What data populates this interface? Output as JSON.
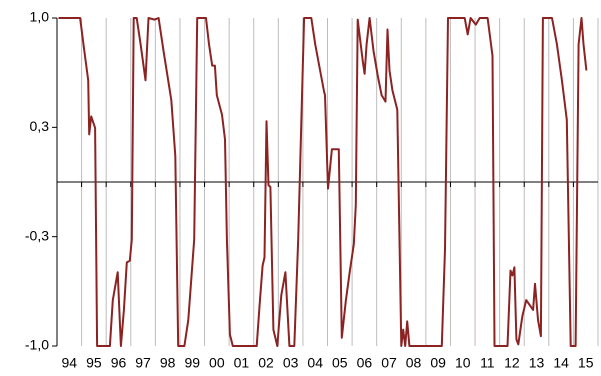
{
  "chart_data": {
    "type": "line",
    "x": [
      1994.06,
      1994.94,
      1995.11,
      1995.27,
      1995.31,
      1995.39,
      1995.55,
      1995.63,
      1996.15,
      1996.27,
      1996.47,
      1996.6,
      1996.72,
      1996.84,
      1996.96,
      1997.04,
      1997.12,
      1997.24,
      1997.4,
      1997.6,
      1997.72,
      1997.97,
      1998.13,
      1998.33,
      1998.65,
      1998.81,
      1998.93,
      1999.18,
      1999.34,
      1999.58,
      1999.7,
      1999.86,
      2000.06,
      2000.18,
      2000.31,
      2000.42,
      2000.5,
      2000.71,
      2000.83,
      2000.91,
      2001.03,
      2001.15,
      2002.12,
      2002.24,
      2002.36,
      2002.44,
      2002.52,
      2002.6,
      2002.68,
      2002.8,
      2002.96,
      2003.12,
      2003.29,
      2003.45,
      2003.65,
      2003.81,
      2004.05,
      2004.34,
      2004.5,
      2004.7,
      2004.86,
      2004.9,
      2005.02,
      2005.18,
      2005.34,
      2005.46,
      2005.58,
      2005.75,
      2005.91,
      2006.07,
      2006.15,
      2006.23,
      2006.43,
      2006.51,
      2006.59,
      2006.71,
      2006.87,
      2007.04,
      2007.2,
      2007.36,
      2007.44,
      2007.52,
      2007.64,
      2007.84,
      2008,
      2008.08,
      2008.16,
      2008.24,
      2008.33,
      2009.65,
      2009.78,
      2009.9,
      2010.58,
      2010.7,
      2010.82,
      2011.03,
      2011.19,
      2011.51,
      2011.71,
      2011.79,
      2012.32,
      2012.44,
      2012.52,
      2012.6,
      2012.68,
      2012.76,
      2012.92,
      2013.08,
      2013.36,
      2013.44,
      2013.56,
      2013.68,
      2013.76,
      2014.13,
      2014.33,
      2014.53,
      2014.73,
      2014.89,
      2015.09,
      2015.21,
      2015.33,
      2015.41,
      2015.53
    ],
    "series": [
      {
        "color": "#8b2323",
        "values": [
          1,
          1,
          0.8,
          0.62,
          0.29,
          0.4,
          0.33,
          -1,
          -1,
          -0.72,
          -0.55,
          -1,
          -0.78,
          -0.49,
          -0.48,
          -0.35,
          1,
          1,
          0.84,
          0.62,
          1,
          0.99,
          1,
          0.8,
          0.5,
          0.16,
          -1,
          -1,
          -0.84,
          -0.35,
          1,
          1,
          1,
          0.84,
          0.71,
          0.71,
          0.53,
          0.41,
          0.26,
          -0.35,
          -0.93,
          -1,
          -1,
          -0.75,
          -0.51,
          -0.46,
          0.37,
          -0.02,
          -0.03,
          -0.9,
          -1,
          -0.69,
          -0.55,
          -1,
          -1,
          -0.35,
          1,
          1,
          0.84,
          0.68,
          0.55,
          0.53,
          -0.04,
          0.2,
          0.2,
          0.2,
          -0.95,
          -0.72,
          -0.54,
          -0.38,
          -0.14,
          0.99,
          0.74,
          0.66,
          0.84,
          1,
          0.8,
          0.65,
          0.53,
          0.49,
          0.93,
          0.68,
          0.56,
          0.44,
          -1,
          -0.9,
          -1,
          -0.85,
          -1,
          -1,
          -0.41,
          1,
          1,
          0.9,
          1,
          0.96,
          1,
          1,
          0.77,
          -1,
          -1,
          -0.54,
          -0.57,
          -0.52,
          -0.96,
          -0.99,
          -0.82,
          -0.72,
          -0.78,
          -0.62,
          -0.84,
          -0.94,
          1,
          1,
          0.84,
          0.62,
          0.38,
          -1,
          -1,
          0.84,
          1,
          0.84,
          0.68
        ]
      }
    ],
    "xlim": [
      1994,
      2016
    ],
    "xticks": [
      {
        "value": 1994,
        "label": "94"
      },
      {
        "value": 1995,
        "label": "95"
      },
      {
        "value": 1996,
        "label": "96"
      },
      {
        "value": 1997,
        "label": "97"
      },
      {
        "value": 1998,
        "label": "98"
      },
      {
        "value": 1999,
        "label": "99"
      },
      {
        "value": 2000,
        "label": "00"
      },
      {
        "value": 2001,
        "label": "01"
      },
      {
        "value": 2002,
        "label": "02"
      },
      {
        "value": 2003,
        "label": "03"
      },
      {
        "value": 2004,
        "label": "04"
      },
      {
        "value": 2005,
        "label": "05"
      },
      {
        "value": 2006,
        "label": "06"
      },
      {
        "value": 2007,
        "label": "07"
      },
      {
        "value": 2008,
        "label": "08"
      },
      {
        "value": 2009,
        "label": "09"
      },
      {
        "value": 2010,
        "label": "10"
      },
      {
        "value": 2011,
        "label": "11"
      },
      {
        "value": 2012,
        "label": "12"
      },
      {
        "value": 2013,
        "label": "13"
      },
      {
        "value": 2014,
        "label": "14"
      },
      {
        "value": 2015,
        "label": "15"
      }
    ],
    "ylim": [
      -1,
      1
    ],
    "yticks": [
      {
        "value": 1,
        "label": "1,0"
      },
      {
        "value": 0.3333,
        "label": "0,3"
      },
      {
        "value": -0.3333,
        "label": "-0,3"
      },
      {
        "value": -1,
        "label": "-1,0"
      }
    ],
    "grid": true
  }
}
